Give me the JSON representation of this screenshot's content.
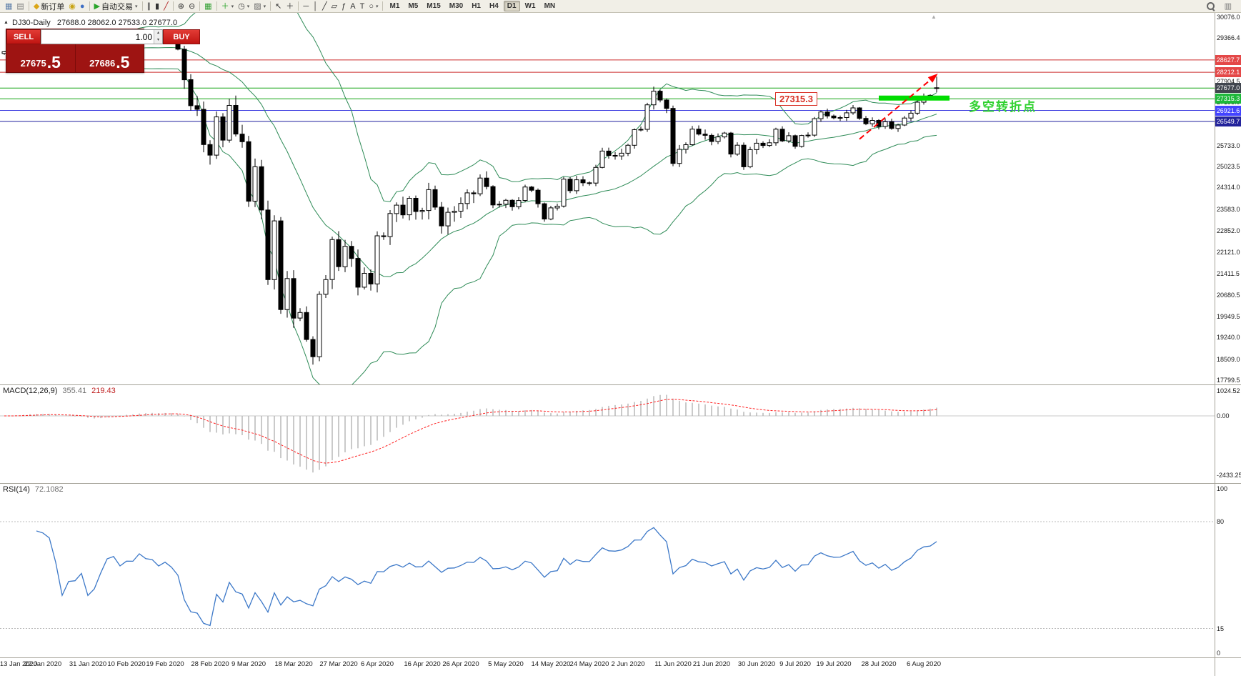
{
  "colors": {
    "toolbar_bg": "#f1efe7",
    "panel_red": "#9e1412",
    "button_red": "#d01818",
    "bollinger_green": "#2e8b57",
    "candle_up": "#ffffff",
    "candle_down": "#000000",
    "macd_hist": "#b4b4b4",
    "macd_signal": "#ff2020",
    "rsi_line": "#3c78c8",
    "trend_arrow_red": "#ff0000",
    "highlight_green": "#00dd00",
    "annotation_green": "#2fd12f"
  },
  "toolbar": {
    "groups": [
      [
        {
          "name": "new-chart-icon",
          "glyph": "▦",
          "color": "#5b7da8"
        },
        {
          "name": "profiles-icon",
          "glyph": "▤",
          "color": "#7d7d7d"
        }
      ],
      [
        {
          "name": "new-order-icon",
          "glyph": "◆",
          "color": "#dba617",
          "label": "新订单"
        },
        {
          "name": "alerts-icon",
          "glyph": "◉",
          "color": "#c8a415"
        },
        {
          "name": "market-watch-icon",
          "glyph": "●",
          "color": "#3f6fc4"
        }
      ],
      [
        {
          "name": "auto-trading-icon",
          "glyph": "▶",
          "color": "#2ba52b",
          "label": "自动交易",
          "caret": true
        }
      ],
      [
        {
          "name": "bar-chart-icon",
          "glyph": "∥",
          "color": "#333333"
        },
        {
          "name": "candlestick-chart-icon",
          "glyph": "▮",
          "color": "#333333"
        },
        {
          "name": "line-chart-icon",
          "glyph": "╱",
          "color": "#b02020"
        }
      ],
      [
        {
          "name": "zoom-in-icon",
          "glyph": "⊕",
          "color": "#333333"
        },
        {
          "name": "zoom-out-icon",
          "glyph": "⊖",
          "color": "#333333"
        }
      ],
      [
        {
          "name": "tile-windows-icon",
          "glyph": "▦",
          "color": "#2f9e2f"
        }
      ],
      [
        {
          "name": "indicators-icon",
          "glyph": "＋",
          "color": "#1fa01f",
          "caret": true
        },
        {
          "name": "periods-icon",
          "glyph": "◷",
          "color": "#444444",
          "caret": true
        },
        {
          "name": "templates-icon",
          "glyph": "▨",
          "color": "#666666",
          "caret": true
        }
      ],
      [
        {
          "name": "cursor-icon",
          "glyph": "↖",
          "color": "#333333"
        },
        {
          "name": "crosshair-icon",
          "glyph": "＋",
          "color": "#333333"
        }
      ],
      [
        {
          "name": "horizontal-line-icon",
          "glyph": "─",
          "color": "#333333"
        },
        {
          "name": "vertical-line-icon",
          "glyph": "│",
          "color": "#333333"
        },
        {
          "name": "trendline-icon",
          "glyph": "╱",
          "color": "#333333"
        },
        {
          "name": "channel-icon",
          "glyph": "▱",
          "color": "#333333"
        },
        {
          "name": "fibonacci-icon",
          "glyph": "ƒ",
          "color": "#333333"
        },
        {
          "name": "text-icon",
          "glyph": "A",
          "color": "#333333"
        },
        {
          "name": "label-icon",
          "glyph": "T",
          "color": "#333333"
        },
        {
          "name": "shapes-icon",
          "glyph": "○",
          "color": "#333333",
          "caret": true
        }
      ]
    ],
    "timeframes": [
      "M1",
      "M5",
      "M15",
      "M30",
      "H1",
      "H4",
      "D1",
      "W1",
      "MN"
    ],
    "active_timeframe": "D1"
  },
  "misc": {
    "spin_up": "▴",
    "spin_down": "▾",
    "data_window_glyph": "▥",
    "scroll_marker": "▲"
  },
  "chart_header": {
    "toggle_icon": "▲",
    "symbol": "DJ30-Daily",
    "ohlc": "27688.0 28062.0 27533.0 27677.0"
  },
  "order_panel": {
    "sell_label": "SELL",
    "buy_label": "BUY",
    "volume": "1.00",
    "sell_price_main": "27675",
    "sell_price_frac": ".5",
    "buy_price_main": "27686",
    "buy_price_frac": ".5"
  },
  "annotations": {
    "price_callout": "27315.3",
    "turning_point_text": "多空转折点",
    "highlight_segment": {
      "price": 27340,
      "x_from_bar": 136,
      "x_to_bar": 147
    },
    "trend_arrow": {
      "from_bar": 133,
      "from_price": 25950,
      "to_bar": 144,
      "to_price": 27950
    }
  },
  "indicators": {
    "macd": {
      "name": "MACD(12,26,9)",
      "main_value": "355.41",
      "signal_value": "219.43",
      "axis_ticks": [
        "1024.52",
        "0.00",
        "-2433.25"
      ]
    },
    "rsi": {
      "name": "RSI(14)",
      "value": "72.1082",
      "axis_ticks": [
        "100",
        "80",
        "15",
        "0"
      ],
      "levels": [
        80,
        15
      ]
    }
  },
  "price_axis": {
    "ticks": [
      "30076.0",
      "29366.4",
      "28656.9",
      "27904.5",
      "27195.0",
      "26485.5",
      "25733.0",
      "25023.5",
      "24314.0",
      "23583.0",
      "22852.0",
      "22121.0",
      "21411.5",
      "20680.5",
      "19949.5",
      "19240.0",
      "18509.0",
      "17799.5"
    ]
  },
  "levels": [
    {
      "price": 28627.7,
      "label": "28627.7",
      "line_color": "#cc2e2e",
      "box_bg": "#e44848",
      "style": "solid"
    },
    {
      "price": 28212.1,
      "label": "28212.1",
      "line_color": "#cc2e2e",
      "box_bg": "#e44848",
      "style": "solid"
    },
    {
      "price": 27677.0,
      "label": "27677.0",
      "line_color": "#17a517",
      "box_bg": "#41464f",
      "style": "solid"
    },
    {
      "price": 27315.3,
      "label": "27315.3",
      "line_color": "#17a517",
      "box_bg": "#1db83a",
      "style": "solid"
    },
    {
      "price": 26921.6,
      "label": "26921.6",
      "line_color": "#3a3ae0",
      "box_bg": "#4343ff",
      "style": "solid"
    },
    {
      "price": 26549.7,
      "label": "26549.7",
      "line_color": "#1d1d9e",
      "box_bg": "#23239b",
      "style": "solid"
    }
  ],
  "chart_data": {
    "type": "candlestick",
    "symbol": "DJ30",
    "timeframe": "Daily",
    "y_range": [
      17799.5,
      30076.0
    ],
    "first_open": 28850,
    "last_bar": {
      "o": 27688.0,
      "h": 28062.0,
      "l": 27533.0,
      "c": 27677.0
    },
    "closes": [
      28907,
      28939,
      29030,
      29297,
      29348,
      29196,
      29186,
      29160,
      28990,
      28536,
      28723,
      28734,
      28859,
      28256,
      28400,
      28808,
      29291,
      29380,
      29103,
      29277,
      29276,
      29551,
      29423,
      29398,
      29232,
      29348,
      29220,
      28992,
      27961,
      27081,
      26958,
      25767,
      25409,
      26703,
      25917,
      27091,
      26121,
      25865,
      23851,
      25018,
      23553,
      21200,
      23186,
      20188,
      21237,
      19899,
      20087,
      19174,
      18592,
      20705,
      21200,
      22552,
      21637,
      22327,
      21917,
      20943,
      21413,
      21053,
      22680,
      22654,
      23434,
      23719,
      23391,
      23950,
      23504,
      23537,
      24242,
      23650,
      23018,
      23476,
      23515,
      23775,
      24134,
      24102,
      24634,
      24346,
      23724,
      23749,
      23883,
      23665,
      23876,
      24331,
      24222,
      23765,
      23248,
      23625,
      23685,
      24597,
      24207,
      24576,
      24474,
      24465,
      24995,
      25548,
      25401,
      25383,
      25475,
      25743,
      26270,
      26282,
      27111,
      27572,
      27272,
      26990,
      25128,
      25605,
      25763,
      26290,
      26120,
      26080,
      25871,
      26025,
      26156,
      25445,
      25746,
      25016,
      25596,
      25813,
      25735,
      25827,
      26287,
      25890,
      26067,
      25706,
      26075,
      26086,
      26643,
      26870,
      26735,
      26672,
      26681,
      26840,
      27006,
      26652,
      26470,
      26584,
      26379,
      26540,
      26313,
      26428,
      26664,
      26828,
      27201,
      27387,
      27433,
      27677
    ],
    "x_labels": [
      "13 Jan 2020",
      "22 Jan 2020",
      "31 Jan 2020",
      "10 Feb 2020",
      "19 Feb 2020",
      "28 Feb 2020",
      "9 Mar 2020",
      "18 Mar 2020",
      "27 Mar 2020",
      "6 Apr 2020",
      "16 Apr 2020",
      "26 Apr 2020",
      "5 May 2020",
      "14 May 2020",
      "24 May 2020",
      "2 Jun 2020",
      "11 Jun 2020",
      "21 Jun 2020",
      "30 Jun 2020",
      "9 Jul 2020",
      "19 Jul 2020",
      "28 Jul 2020",
      "6 Aug 2020"
    ],
    "x_label_indices": [
      0,
      6,
      13,
      19,
      25,
      32,
      38,
      45,
      52,
      58,
      65,
      71,
      78,
      85,
      91,
      97,
      104,
      110,
      117,
      123,
      129,
      136,
      143
    ],
    "overlays": "Bollinger(20,2) bands; MACD(12,26,9) and RSI(14) computed from closes"
  }
}
